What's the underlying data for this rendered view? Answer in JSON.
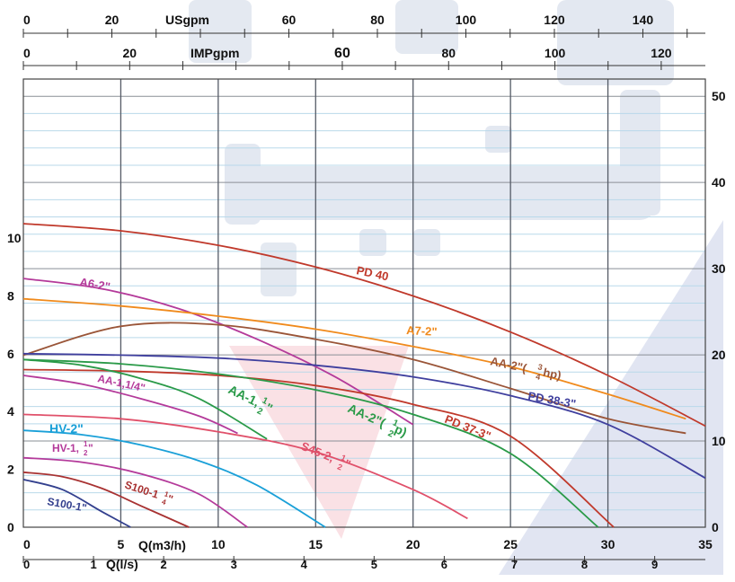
{
  "chart_data": {
    "type": "line",
    "xlabel": "Q(m3/h)",
    "xlabel_ls": "Q(l/s)",
    "unit_usgpm": "USgpm",
    "unit_impgpm": "IMPgpm",
    "x_range": [
      0,
      35
    ],
    "y_left_range": [
      0,
      15.5
    ],
    "y_right_range": [
      0,
      52
    ],
    "ticks_m3h": [
      0,
      5,
      10,
      15,
      20,
      25,
      30,
      35
    ],
    "ticks_ls": [
      0,
      1,
      2,
      3,
      4,
      5,
      6,
      7,
      8,
      9
    ],
    "ticks_usgpm": [
      0,
      20,
      60,
      80,
      100,
      120,
      140
    ],
    "ticks_usgpm_label_20": "20",
    "ticks_impgpm": [
      0,
      20,
      60,
      80,
      100,
      120
    ],
    "ticks_left": [
      0,
      2,
      4,
      6,
      8,
      10
    ],
    "ticks_right": [
      0,
      10,
      20,
      30,
      40,
      50
    ],
    "series": [
      {
        "name": "PD 40",
        "color": "#c0392b",
        "x": [
          0,
          5,
          10,
          15,
          20,
          25,
          30,
          35
        ],
        "y": [
          10.5,
          10.25,
          9.75,
          9.0,
          8.0,
          6.75,
          5.25,
          3.5
        ]
      },
      {
        "name": "A6-2\"",
        "color": "#b43a9a",
        "x": [
          0,
          4,
          8,
          12,
          16,
          20
        ],
        "y": [
          8.6,
          8.25,
          7.55,
          6.5,
          5.2,
          3.55
        ]
      },
      {
        "name": "A7-2\"",
        "color": "#f08a1c",
        "x": [
          0,
          5,
          10,
          15,
          20,
          25,
          30,
          34
        ],
        "y": [
          7.9,
          7.65,
          7.3,
          6.85,
          6.25,
          5.55,
          4.6,
          3.75
        ]
      },
      {
        "name": "AA-2\"(3/4hp)",
        "color": "#9a5538",
        "x": [
          0,
          5,
          10,
          15,
          20,
          25,
          30,
          34
        ],
        "y": [
          5.95,
          6.95,
          7.0,
          6.5,
          5.8,
          4.8,
          3.75,
          3.25
        ]
      },
      {
        "name": "PD 38-3\"",
        "color": "#3f3f9e",
        "x": [
          0,
          5,
          10,
          15,
          20,
          25,
          30,
          35
        ],
        "y": [
          6.0,
          5.95,
          5.85,
          5.6,
          5.2,
          4.55,
          3.55,
          1.7
        ]
      },
      {
        "name": "PD 37-3\"",
        "color": "#c0392b",
        "x": [
          0,
          5,
          10,
          15,
          20,
          25,
          30.3
        ],
        "y": [
          5.45,
          5.4,
          5.25,
          4.9,
          4.25,
          3.15,
          0
        ]
      },
      {
        "name": "AA-2\"(1/2 p)",
        "color": "#2a9a48",
        "x": [
          0,
          5,
          10,
          15,
          20,
          25,
          29.5
        ],
        "y": [
          5.8,
          5.65,
          5.3,
          4.75,
          3.9,
          2.55,
          0
        ]
      },
      {
        "name": "AA-1 1/2\"",
        "color": "#2a9a48",
        "x": [
          0,
          3,
          6,
          9,
          12.5
        ],
        "y": [
          5.8,
          5.6,
          5.15,
          4.45,
          3.05
        ]
      },
      {
        "name": "AA-1,1/4\"",
        "color": "#b43a9a",
        "x": [
          0,
          3,
          6,
          9,
          11
        ],
        "y": [
          5.25,
          4.95,
          4.45,
          3.85,
          3.25
        ]
      },
      {
        "name": "S45-2,1/2\"",
        "color": "#e0506a",
        "x": [
          0,
          5,
          10,
          15,
          20,
          22.8
        ],
        "y": [
          3.9,
          3.75,
          3.3,
          2.6,
          1.3,
          0.3
        ]
      },
      {
        "name": "HV-2\"",
        "color": "#1aa0d8",
        "x": [
          0,
          3,
          6,
          9,
          12,
          15.5
        ],
        "y": [
          3.35,
          3.2,
          2.85,
          2.3,
          1.45,
          0
        ]
      },
      {
        "name": "HV-1,1/2\"",
        "color": "#b43a9a",
        "x": [
          0,
          3,
          6,
          9,
          11.5
        ],
        "y": [
          2.4,
          2.25,
          1.85,
          1.15,
          0
        ]
      },
      {
        "name": "S100-1,1/4\"",
        "color": "#a83232",
        "x": [
          0,
          2,
          4,
          6,
          8.5
        ],
        "y": [
          1.9,
          1.75,
          1.35,
          0.75,
          0
        ]
      },
      {
        "name": "S100-1\"",
        "color": "#33408e",
        "x": [
          0,
          2,
          4,
          5.5
        ],
        "y": [
          1.65,
          1.3,
          0.55,
          0
        ]
      }
    ],
    "series_labels": {
      "pd40": "PD 40",
      "a6": "A6-2\"",
      "a7": "A7-2\"",
      "aa2_34": "AA-2\"(",
      "aa2_34_num": "3",
      "aa2_34_den": "4",
      "aa2_34_end": "hp)",
      "pd38": "PD 38-3\"",
      "pd37": "PD 37-3\"",
      "aa2_12": "AA-2\"(",
      "aa2_12_num": "1",
      "aa2_12_den": "2",
      "aa2_12_end": " p)",
      "aa112": "AA-1,",
      "aa112_num": "1",
      "aa112_den": "2",
      "aa112_end": "\"",
      "aa114": "AA-1,1/4\"",
      "s45": "S45-2,",
      "s45_num": "1",
      "s45_den": "2",
      "s45_end": "\"",
      "hv2": "HV-2\"",
      "hv112": "HV-1,",
      "hv112_num": "1",
      "hv112_den": "2",
      "hv112_end": "\"",
      "s100114": "S100-1",
      "s100114_num": "1",
      "s100114_den": "4",
      "s100114_end": "\"",
      "s1001": "S100-1\""
    }
  }
}
